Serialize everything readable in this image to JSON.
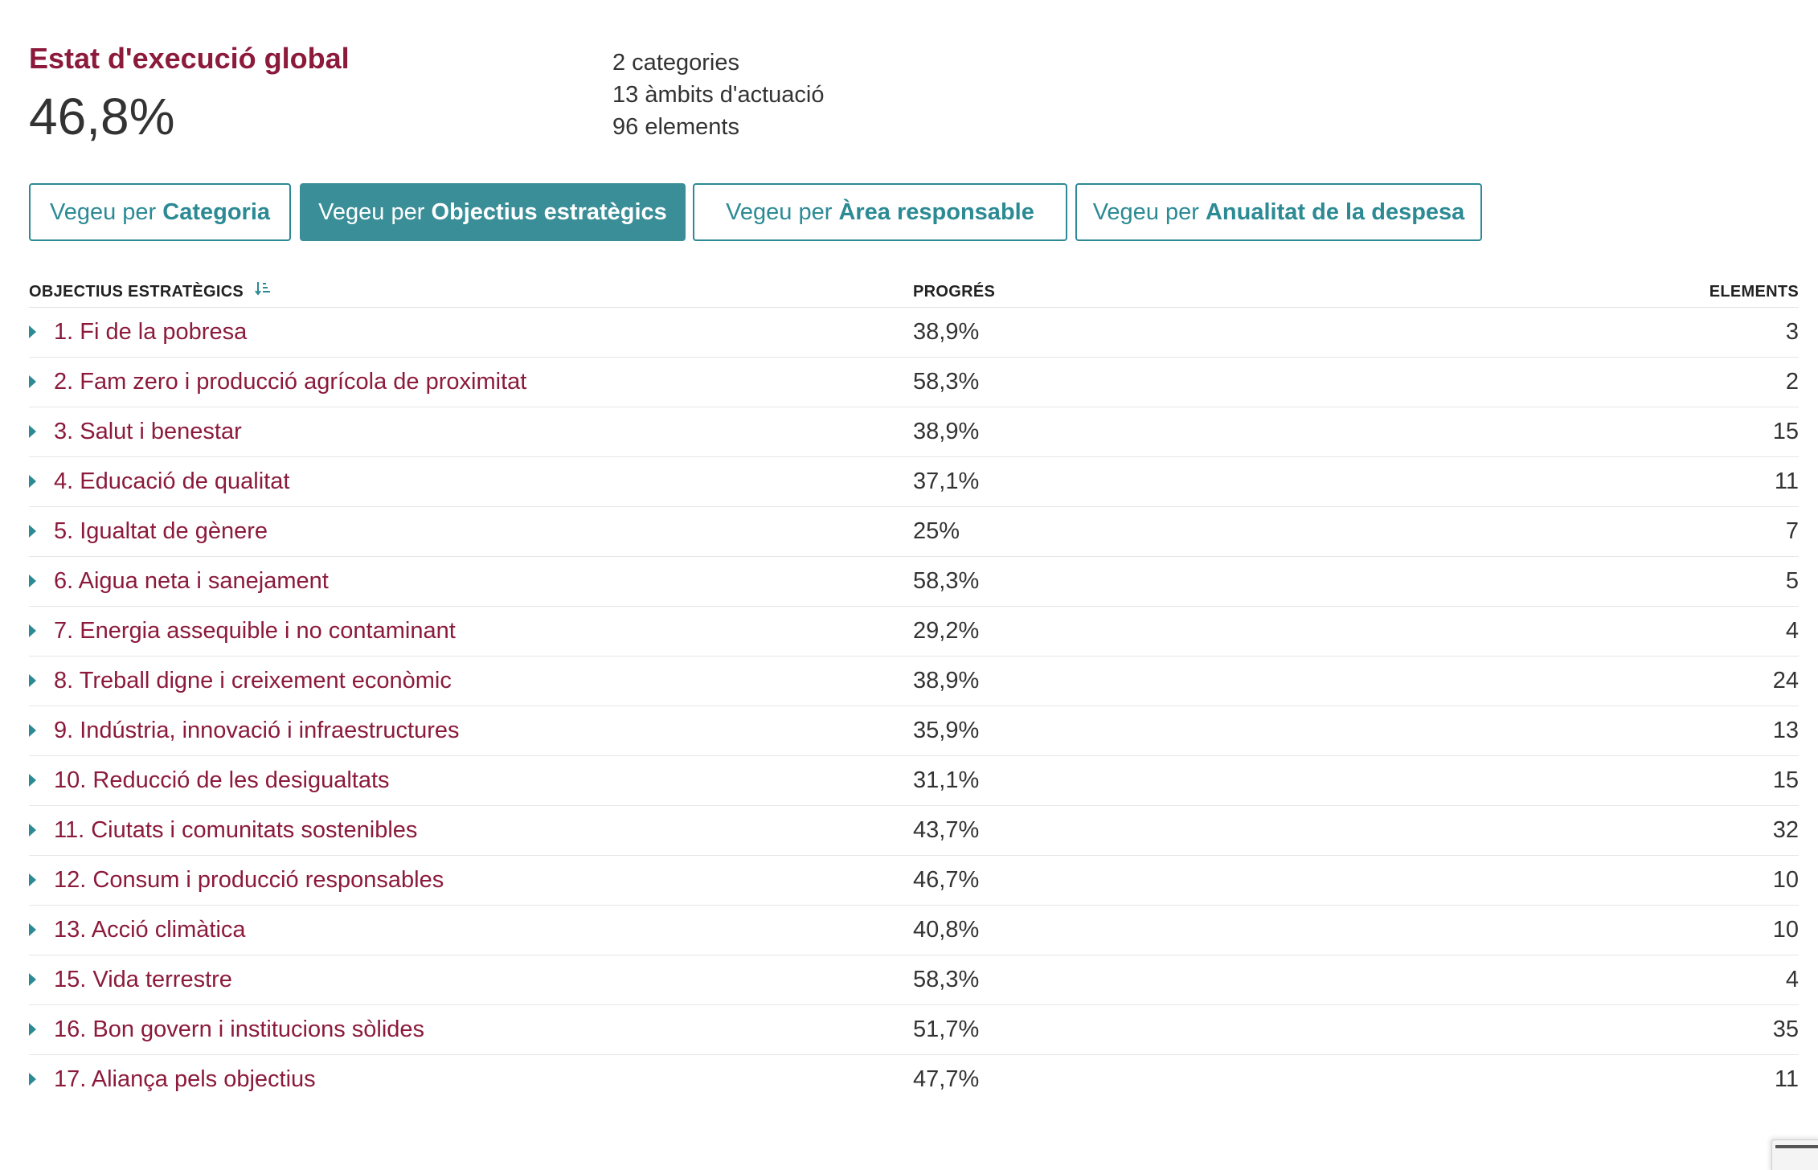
{
  "summary": {
    "title": "Estat d'execució global",
    "value": "46,8%",
    "stats": [
      "2 categories",
      "13 àmbits d'actuació",
      "96 elements"
    ]
  },
  "view_buttons": [
    {
      "prefix": "Vegeu per ",
      "label": "Categoria",
      "active": false
    },
    {
      "prefix": "Vegeu per ",
      "label": "Objectius estratègics",
      "active": true
    },
    {
      "prefix": "Vegeu per ",
      "label": "Àrea responsable",
      "active": false
    },
    {
      "prefix": "Vegeu per ",
      "label": "Anualitat de la despesa",
      "active": false
    }
  ],
  "table": {
    "headers": {
      "name": "OBJECTIUS ESTRATÈGICS",
      "progress": "PROGRÉS",
      "elements": "ELEMENTS"
    },
    "sort_icon": "sort-descending-icon",
    "rows": [
      {
        "name": "1. Fi de la pobresa",
        "progress": "38,9%",
        "elements": "3"
      },
      {
        "name": "2. Fam zero i producció agrícola de proximitat",
        "progress": "58,3%",
        "elements": "2"
      },
      {
        "name": "3. Salut i benestar",
        "progress": "38,9%",
        "elements": "15"
      },
      {
        "name": "4. Educació de qualitat",
        "progress": "37,1%",
        "elements": "11"
      },
      {
        "name": "5. Igualtat de gènere",
        "progress": "25%",
        "elements": "7"
      },
      {
        "name": "6. Aigua neta i sanejament",
        "progress": "58,3%",
        "elements": "5"
      },
      {
        "name": "7. Energia assequible i no contaminant",
        "progress": "29,2%",
        "elements": "4"
      },
      {
        "name": "8. Treball digne i creixement econòmic",
        "progress": "38,9%",
        "elements": "24"
      },
      {
        "name": "9. Indústria, innovació i infraestructures",
        "progress": "35,9%",
        "elements": "13"
      },
      {
        "name": "10. Reducció de les desigualtats",
        "progress": "31,1%",
        "elements": "15"
      },
      {
        "name": "11. Ciutats i comunitats sostenibles",
        "progress": "43,7%",
        "elements": "32"
      },
      {
        "name": "12. Consum i producció responsables",
        "progress": "46,7%",
        "elements": "10"
      },
      {
        "name": "13. Acció climàtica",
        "progress": "40,8%",
        "elements": "10"
      },
      {
        "name": "15. Vida terrestre",
        "progress": "58,3%",
        "elements": "4"
      },
      {
        "name": "16. Bon govern i institucions sòlides",
        "progress": "51,7%",
        "elements": "35"
      },
      {
        "name": "17. Aliança pels objectius",
        "progress": "47,7%",
        "elements": "11"
      }
    ]
  },
  "colors": {
    "title": "#8b1a3b",
    "link": "#8b1a3b",
    "accent": "#2b8a94",
    "active_button_bg": "#3a8e97",
    "text": "#333333"
  }
}
